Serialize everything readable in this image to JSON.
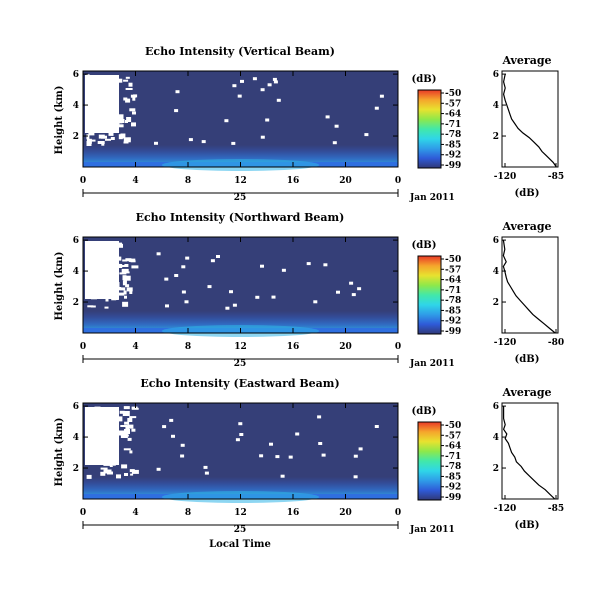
{
  "xlabel": "Local Time",
  "panels": [
    {
      "title": "Echo Intensity (Vertical Beam)",
      "avg_title": "Average",
      "ylabel": "Height (km)",
      "yticks": [
        "6",
        "4",
        "2"
      ],
      "xticks": [
        "0",
        "4",
        "8",
        "12",
        "16",
        "20",
        "0"
      ],
      "date_day": "25",
      "date_suffix": "Jan 2011",
      "cb_unit": "(dB)",
      "cb_ticks": [
        "-50",
        "-57",
        "-64",
        "-71",
        "-78",
        "-85",
        "-92",
        "-99"
      ],
      "avg_xticks": [
        "-120",
        "-85"
      ],
      "avg_yticks": [
        "6",
        "4",
        "2"
      ],
      "avg_xlabel": "(dB)",
      "avg_xlim": [
        -120,
        -85
      ],
      "avg_profile": [
        [
          0.0,
          -86
        ],
        [
          0.3,
          -88
        ],
        [
          0.6,
          -91
        ],
        [
          0.8,
          -93
        ],
        [
          1.0,
          -95
        ],
        [
          1.3,
          -97
        ],
        [
          1.6,
          -100
        ],
        [
          1.9,
          -103
        ],
        [
          2.2,
          -107
        ],
        [
          2.5,
          -110
        ],
        [
          2.8,
          -112
        ],
        [
          3.1,
          -114
        ],
        [
          3.4,
          -115
        ],
        [
          3.7,
          -116
        ],
        [
          4.0,
          -117
        ],
        [
          4.3,
          -118
        ],
        [
          4.7,
          -119
        ],
        [
          5.1,
          -118
        ],
        [
          5.5,
          -119
        ],
        [
          6.0,
          -118
        ]
      ]
    },
    {
      "title": "Echo Intensity (Northward Beam)",
      "avg_title": "Average",
      "ylabel": "Height (km)",
      "yticks": [
        "6",
        "4",
        "2"
      ],
      "xticks": [
        "0",
        "4",
        "8",
        "12",
        "16",
        "20",
        "0"
      ],
      "date_day": "25",
      "date_suffix": "Jan 2011",
      "cb_unit": "(dB)",
      "cb_ticks": [
        "-50",
        "-57",
        "-64",
        "-71",
        "-78",
        "-85",
        "-92",
        "-99"
      ],
      "avg_xticks": [
        "-120",
        "-80"
      ],
      "avg_yticks": [
        "6",
        "4",
        "2"
      ],
      "avg_xlabel": "(dB)",
      "avg_xlim": [
        -120,
        -80
      ],
      "avg_profile": [
        [
          0.0,
          -82
        ],
        [
          0.3,
          -86
        ],
        [
          0.6,
          -90
        ],
        [
          0.9,
          -94
        ],
        [
          1.2,
          -98
        ],
        [
          1.5,
          -101
        ],
        [
          1.8,
          -104
        ],
        [
          2.1,
          -107
        ],
        [
          2.4,
          -110
        ],
        [
          2.7,
          -112
        ],
        [
          3.0,
          -114
        ],
        [
          3.3,
          -116
        ],
        [
          3.6,
          -117
        ],
        [
          4.0,
          -118
        ],
        [
          4.3,
          -119
        ],
        [
          4.6,
          -117
        ],
        [
          5.0,
          -119
        ],
        [
          5.4,
          -118
        ],
        [
          6.0,
          -119
        ]
      ]
    },
    {
      "title": "Echo Intensity (Eastward Beam)",
      "avg_title": "Average",
      "ylabel": "Height (km)",
      "yticks": [
        "6",
        "4",
        "2"
      ],
      "xticks": [
        "0",
        "4",
        "8",
        "12",
        "16",
        "20",
        "0"
      ],
      "date_day": "25",
      "date_suffix": "Jan 2011",
      "cb_unit": "(dB)",
      "cb_ticks": [
        "-50",
        "-57",
        "-64",
        "-71",
        "-78",
        "-85",
        "-92",
        "-99"
      ],
      "avg_xticks": [
        "-120",
        "-85"
      ],
      "avg_yticks": [
        "6",
        "4",
        "2"
      ],
      "avg_xlabel": "(dB)",
      "avg_xlim": [
        -120,
        -85
      ],
      "avg_profile": [
        [
          0.0,
          -87
        ],
        [
          0.3,
          -90
        ],
        [
          0.6,
          -93
        ],
        [
          0.9,
          -97
        ],
        [
          1.2,
          -100
        ],
        [
          1.5,
          -103
        ],
        [
          1.8,
          -106
        ],
        [
          2.1,
          -108
        ],
        [
          2.4,
          -111
        ],
        [
          2.7,
          -112
        ],
        [
          3.0,
          -114
        ],
        [
          3.3,
          -115
        ],
        [
          3.6,
          -116
        ],
        [
          3.9,
          -118
        ],
        [
          4.2,
          -117
        ],
        [
          4.5,
          -119
        ],
        [
          4.8,
          -118
        ],
        [
          5.2,
          -119
        ],
        [
          6.0,
          -119
        ]
      ]
    }
  ],
  "colors": {
    "background": "#353f78",
    "nodata": "#ffffff",
    "colorbar": [
      "#303877",
      "#2f5bd8",
      "#2f9de8",
      "#2fd6e8",
      "#42e8a9",
      "#8fe84a",
      "#e8e22f",
      "#f5a52c",
      "#e83a27"
    ]
  },
  "chart_data": [
    {
      "type": "heatmap",
      "title": "Echo Intensity (Vertical Beam)",
      "xlabel": "",
      "ylabel": "Height (km)",
      "xlim": [
        0,
        24
      ],
      "ylim": [
        0,
        6
      ],
      "colorbar_range_db": [
        -99,
        -50
      ]
    },
    {
      "type": "line",
      "title": "Average",
      "xlabel": "(dB)",
      "xlim": [
        -120,
        -85
      ],
      "ylim": [
        0,
        6
      ]
    },
    {
      "type": "heatmap",
      "title": "Echo Intensity (Northward Beam)",
      "ylabel": "Height (km)",
      "xlim": [
        0,
        24
      ],
      "ylim": [
        0,
        6
      ],
      "colorbar_range_db": [
        -99,
        -50
      ]
    },
    {
      "type": "line",
      "title": "Average",
      "xlabel": "(dB)",
      "xlim": [
        -120,
        -80
      ],
      "ylim": [
        0,
        6
      ]
    },
    {
      "type": "heatmap",
      "title": "Echo Intensity (Eastward Beam)",
      "xlabel": "Local Time",
      "ylabel": "Height (km)",
      "xlim": [
        0,
        24
      ],
      "ylim": [
        0,
        6
      ],
      "colorbar_range_db": [
        -99,
        -50
      ]
    },
    {
      "type": "line",
      "title": "Average",
      "xlabel": "(dB)",
      "xlim": [
        -120,
        -85
      ],
      "ylim": [
        0,
        6
      ]
    }
  ]
}
